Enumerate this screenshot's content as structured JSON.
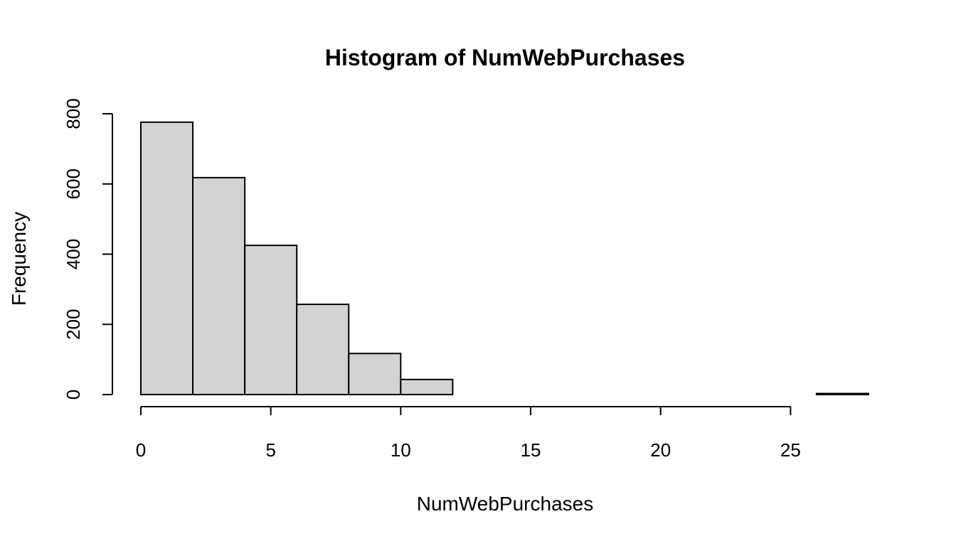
{
  "chart_data": {
    "type": "bar",
    "title": "Histogram of NumWebPurchases",
    "xlabel": "NumWebPurchases",
    "ylabel": "Frequency",
    "bins": [
      {
        "from": 0,
        "to": 2,
        "count": 776
      },
      {
        "from": 2,
        "to": 4,
        "count": 618
      },
      {
        "from": 4,
        "to": 6,
        "count": 425
      },
      {
        "from": 6,
        "to": 8,
        "count": 257
      },
      {
        "from": 8,
        "to": 10,
        "count": 117
      },
      {
        "from": 10,
        "to": 12,
        "count": 43
      },
      {
        "from": 12,
        "to": 14,
        "count": 0
      },
      {
        "from": 14,
        "to": 16,
        "count": 0
      },
      {
        "from": 16,
        "to": 18,
        "count": 0
      },
      {
        "from": 18,
        "to": 20,
        "count": 0
      },
      {
        "from": 20,
        "to": 22,
        "count": 0
      },
      {
        "from": 22,
        "to": 24,
        "count": 0
      },
      {
        "from": 24,
        "to": 26,
        "count": 0
      },
      {
        "from": 26,
        "to": 28,
        "count": 3
      }
    ],
    "x_ticks": [
      "0",
      "5",
      "10",
      "15",
      "20",
      "25"
    ],
    "y_ticks": [
      "0",
      "200",
      "400",
      "600",
      "800"
    ],
    "xlim": [
      0,
      28
    ],
    "ylim": [
      0,
      800
    ],
    "grid": false,
    "bar_color": "#d3d3d3"
  }
}
